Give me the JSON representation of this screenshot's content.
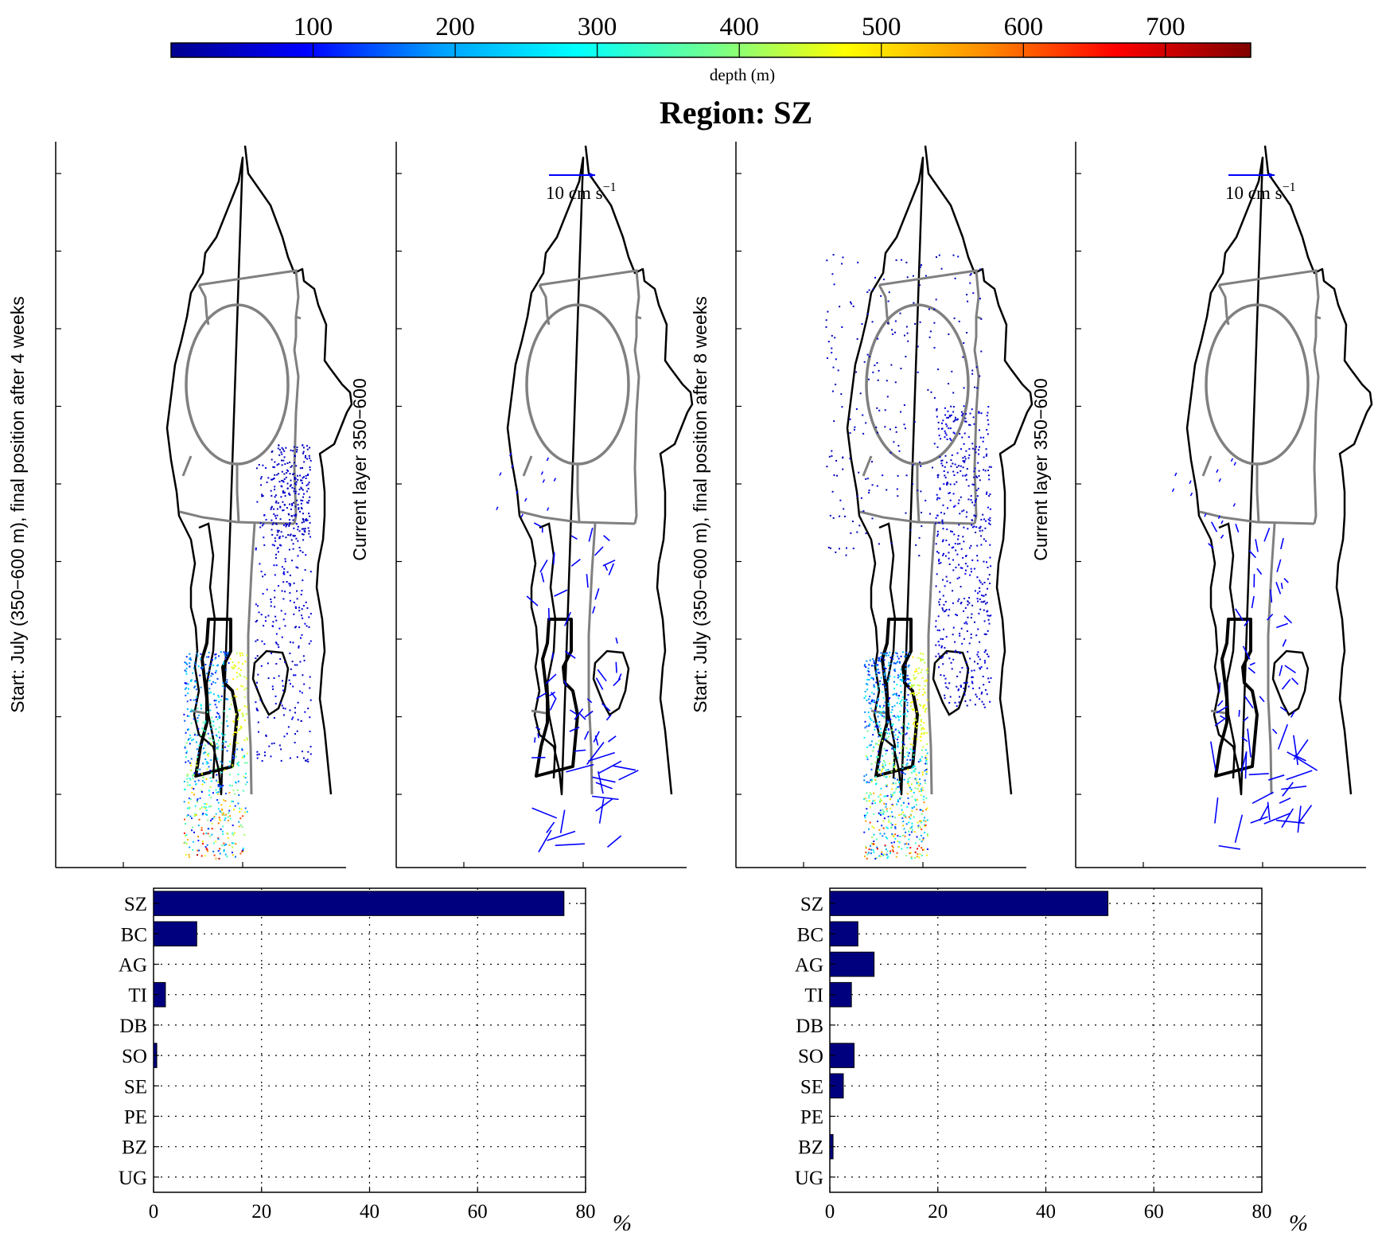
{
  "title": "Region: SZ",
  "colorbar": {
    "label": "depth (m)",
    "ticks": [
      "100",
      "200",
      "300",
      "400",
      "500",
      "600",
      "700"
    ],
    "colormap": [
      "#00008f",
      "#0000ff",
      "#00a0ff",
      "#00ffff",
      "#70ff90",
      "#ffff00",
      "#ff9000",
      "#ff0000",
      "#800000"
    ]
  },
  "maps": [
    {
      "ylabel": "Start: July (350−600 m), final position after 4 weeks",
      "kind": "particles",
      "weeks": 4
    },
    {
      "ylabel": "Current layer 350−600",
      "kind": "currents",
      "scale_label": "10 cm s",
      "scale_exp": "−1"
    },
    {
      "ylabel": "Start: July (350−600 m), final position after 8 weeks",
      "kind": "particles",
      "weeks": 8
    },
    {
      "ylabel": "Current layer 350−600",
      "kind": "currents",
      "scale_label": "10 cm s",
      "scale_exp": "−1"
    }
  ],
  "colors": {
    "bar": "#00007f",
    "region_outline": "#808080",
    "target_region": "#000000",
    "arrows": "#0000ff"
  },
  "chart_data": [
    {
      "type": "bar",
      "orientation": "horizontal",
      "categories": [
        "SZ",
        "BC",
        "AG",
        "TI",
        "DB",
        "SO",
        "SE",
        "PE",
        "BZ",
        "UG"
      ],
      "values": [
        76,
        8,
        0,
        2.2,
        0,
        0.6,
        0,
        0,
        0,
        0
      ],
      "xlabel": "%",
      "xlim": [
        0,
        80
      ],
      "xticks": [
        "0",
        "20",
        "40",
        "60",
        "80"
      ],
      "grid": true
    },
    {
      "type": "bar",
      "orientation": "horizontal",
      "categories": [
        "SZ",
        "BC",
        "AG",
        "TI",
        "DB",
        "SO",
        "SE",
        "PE",
        "BZ",
        "UG"
      ],
      "values": [
        51.5,
        5.2,
        8.2,
        4,
        0,
        4.5,
        2.5,
        0,
        0.6,
        0
      ],
      "xlabel": "%",
      "xlim": [
        0,
        80
      ],
      "xticks": [
        "0",
        "20",
        "40",
        "60",
        "80"
      ],
      "grid": true
    }
  ]
}
